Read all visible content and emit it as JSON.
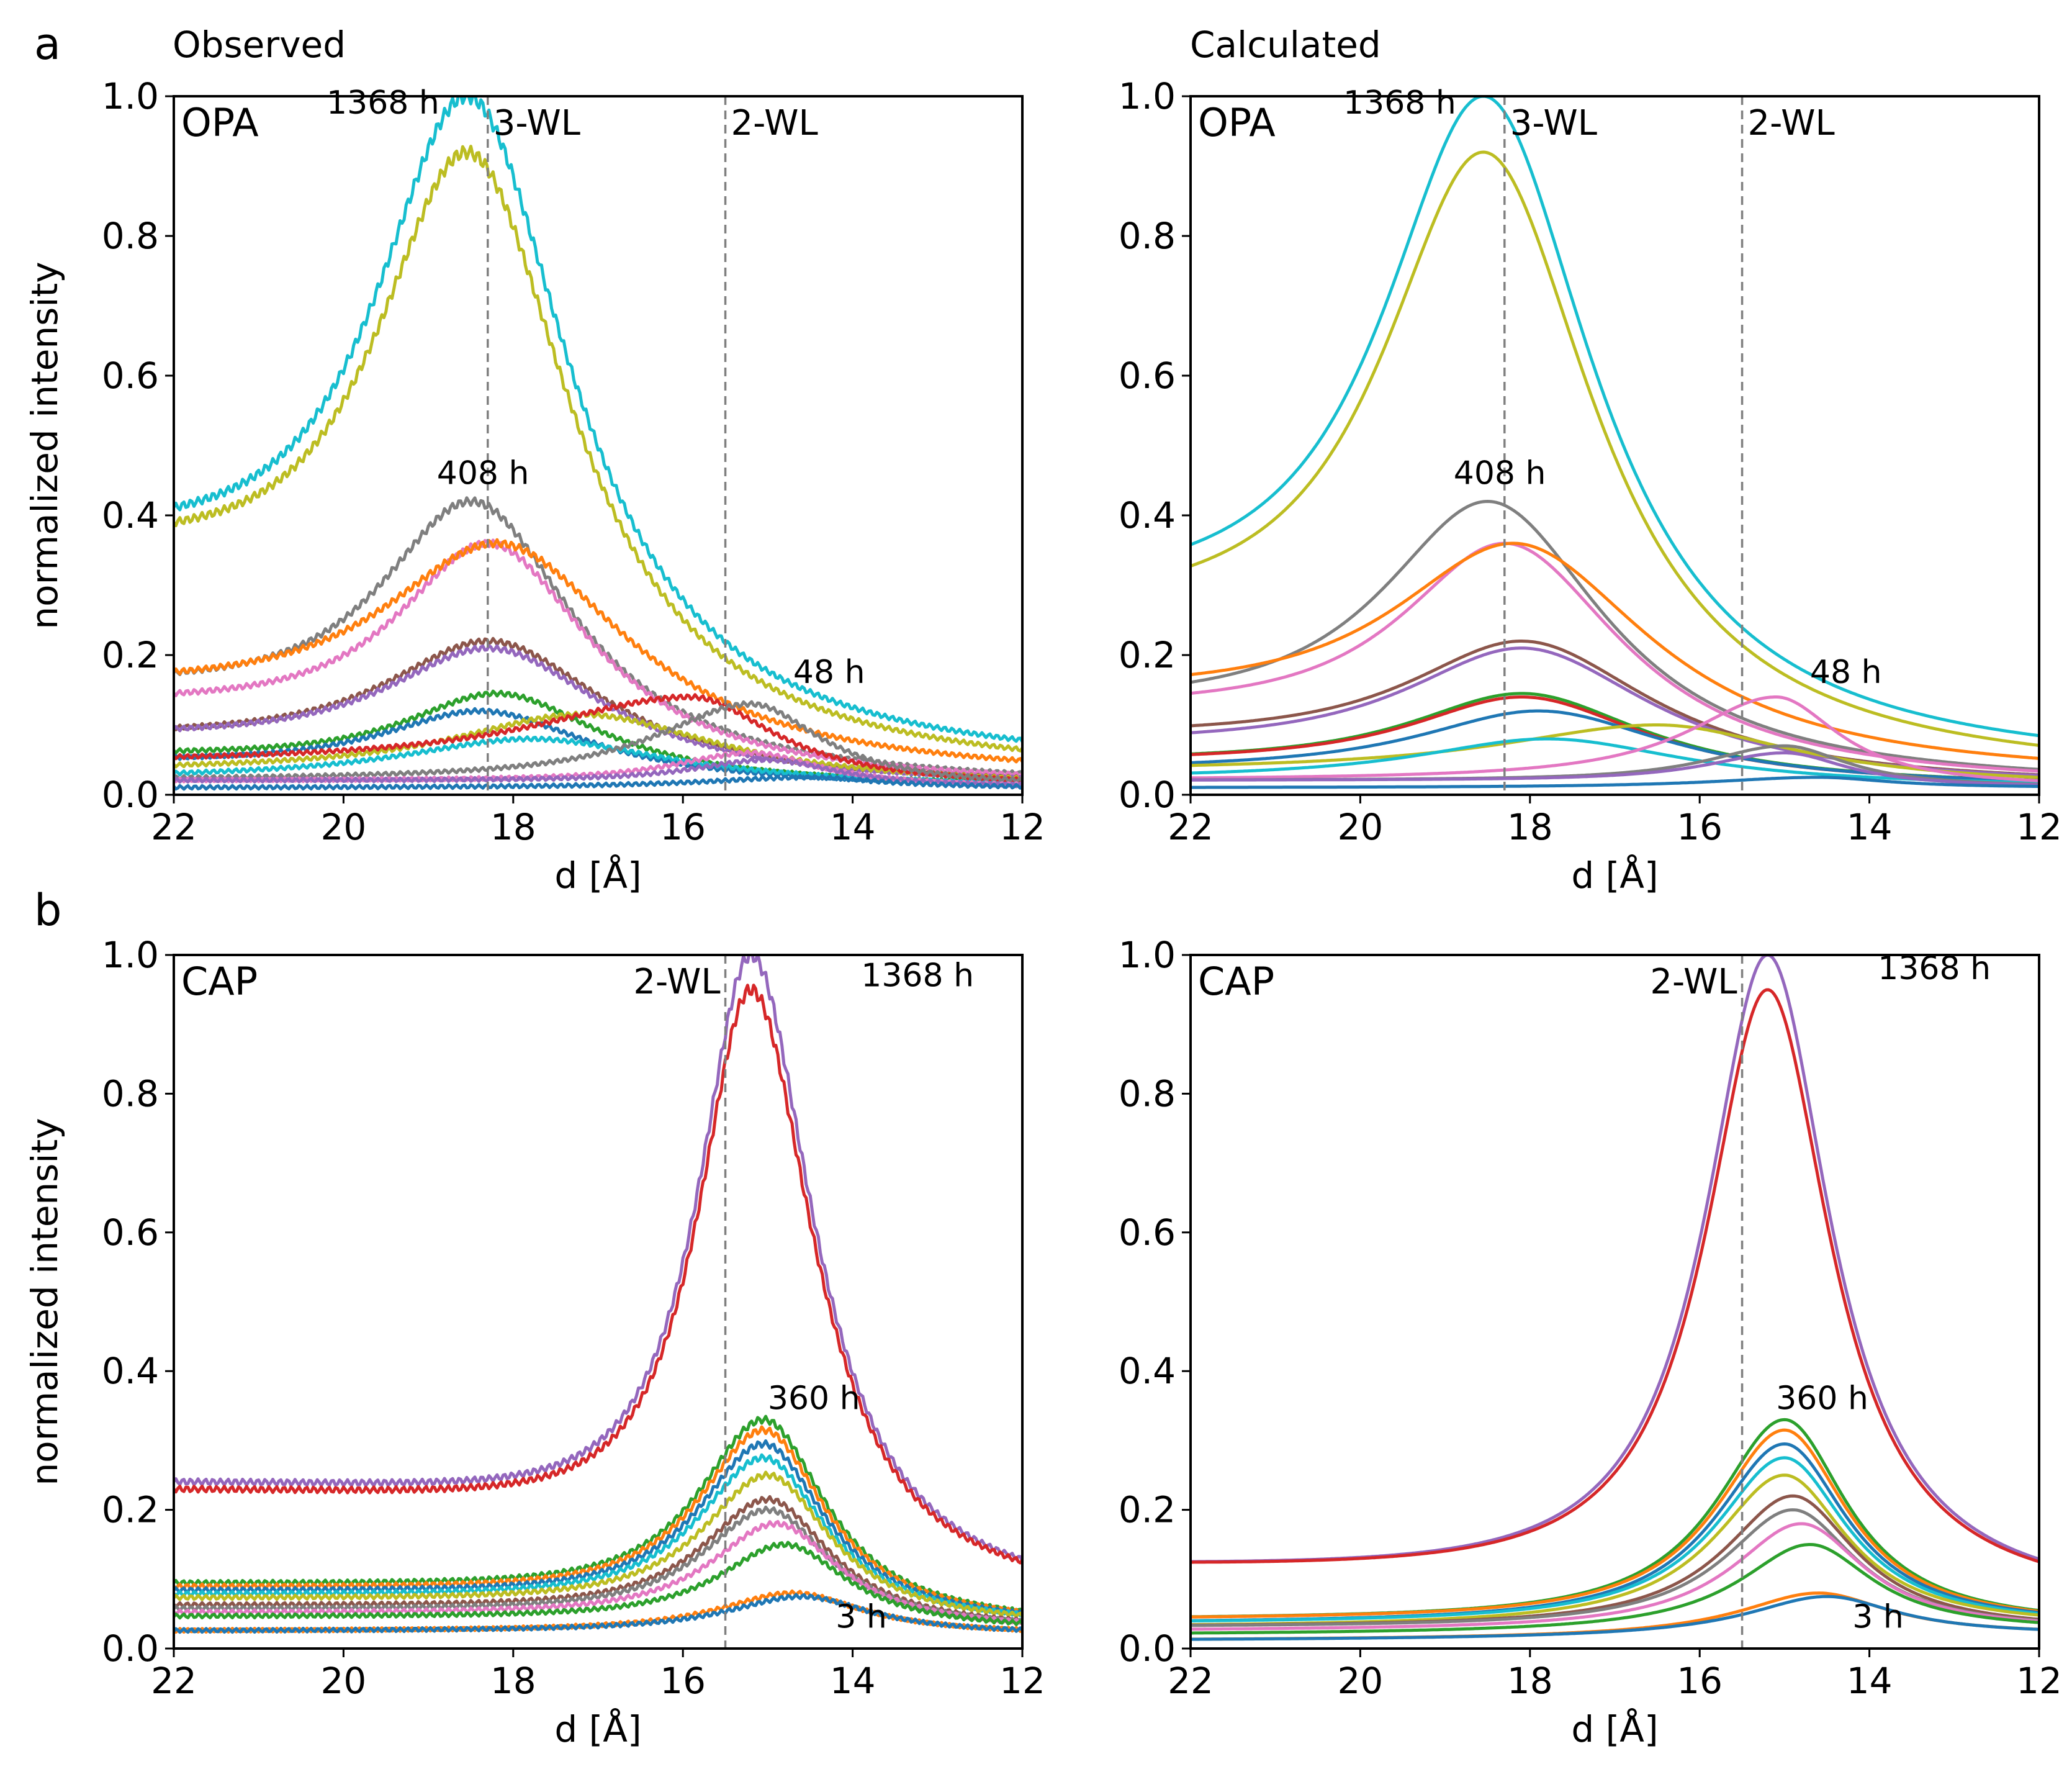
{
  "figure": {
    "panel_letters": [
      "a",
      "b"
    ],
    "column_titles": [
      "Observed",
      "Calculated"
    ]
  },
  "chart_data": [
    {
      "type": "line",
      "id": "a-observed",
      "title": "Observed",
      "panel_label": "OPA",
      "xlabel": "d [Å]",
      "ylabel": "normalized intensity",
      "xlim": [
        22,
        12
      ],
      "ylim": [
        0,
        1.0
      ],
      "xticks": [
        "22",
        "20",
        "18",
        "16",
        "14",
        "12"
      ],
      "yticks": [
        "0.0",
        "0.2",
        "0.4",
        "0.6",
        "0.8",
        "1.0"
      ],
      "vlines": [
        {
          "x": 18.3,
          "label": "3-WL"
        },
        {
          "x": 15.5,
          "label": "2-WL"
        }
      ],
      "annotations": [
        {
          "text": "1368 h",
          "x": 20.2,
          "y": 0.975
        },
        {
          "text": "408 h",
          "x": 18.9,
          "y": 0.445
        },
        {
          "text": "48 h",
          "x": 14.7,
          "y": 0.16
        }
      ],
      "series": [
        {
          "name": "1368 h",
          "color": "#17becf",
          "peak": 18.55,
          "amp": 1.0,
          "wl": 1.5,
          "wr": 1.5,
          "base": 0.3,
          "ts": 2.3,
          "end": 0.03
        },
        {
          "color": "#bcbd22",
          "peak": 18.55,
          "amp": 0.92,
          "wl": 1.5,
          "wr": 1.5,
          "base": 0.29,
          "ts": 2.3,
          "end": 0.02
        },
        {
          "name": "408 h",
          "color": "#7f7f7f",
          "peak": 18.5,
          "amp": 0.42,
          "wl": 1.5,
          "wr": 1.5,
          "base": 0.13,
          "ts": 2.3,
          "end": 0.01
        },
        {
          "color": "#e377c2",
          "peak": 18.3,
          "amp": 0.36,
          "wl": 1.5,
          "wr": 1.5,
          "base": 0.11,
          "ts": 2.3,
          "end": 0.01
        },
        {
          "color": "#ff7f0e",
          "peak": 18.2,
          "amp": 0.36,
          "wl": 1.9,
          "wr": 1.9,
          "base": 0.13,
          "ts": 2.3,
          "end": 0.02
        },
        {
          "color": "#8c564b",
          "peak": 18.3,
          "amp": 0.22,
          "wl": 1.7,
          "wr": 1.7,
          "base": 0.07,
          "ts": 2.3,
          "end": 0.01
        },
        {
          "color": "#9467bd",
          "peak": 18.3,
          "amp": 0.21,
          "wl": 1.7,
          "wr": 1.7,
          "base": 0.07,
          "ts": 2.3,
          "end": 0.01
        },
        {
          "color": "#2ca02c",
          "peak": 18.2,
          "amp": 0.145,
          "wl": 1.5,
          "wr": 1.5,
          "base": 0.05,
          "ts": 2.3,
          "end": 0.01
        },
        {
          "color": "#1f77b4",
          "peak": 18.4,
          "amp": 0.12,
          "wl": 1.6,
          "wr": 1.6,
          "base": 0.04,
          "ts": 2.3,
          "end": 0.01
        },
        {
          "color": "#bcbd22",
          "peak": 17.2,
          "amp": 0.115,
          "wl": 2.0,
          "wr": 2.0,
          "base": 0.03,
          "ts": 2.3,
          "end": 0.01
        },
        {
          "color": "#17becf",
          "peak": 17.8,
          "amp": 0.08,
          "wl": 2.0,
          "wr": 2.0,
          "base": 0.02,
          "ts": 2.3,
          "end": 0.01
        },
        {
          "color": "#d62728",
          "peak": 15.9,
          "amp": 0.14,
          "wl": 2.5,
          "wr": 1.2,
          "base": 0.04,
          "ts": 3.5,
          "end": 0.01
        },
        {
          "name": "48 h",
          "color": "#7f7f7f",
          "peak": 15.2,
          "amp": 0.13,
          "wl": 1.4,
          "wr": 1.0,
          "base": 0.02,
          "ts": 2.0,
          "end": 0.01
        },
        {
          "color": "#e377c2",
          "peak": 15.2,
          "amp": 0.06,
          "wl": 1.2,
          "wr": 1.0,
          "base": 0.02,
          "ts": 2.0,
          "end": 0.01
        },
        {
          "color": "#9467bd",
          "peak": 15.0,
          "amp": 0.05,
          "wl": 1.2,
          "wr": 1.0,
          "base": 0.02,
          "ts": 2.0,
          "end": 0.01
        },
        {
          "color": "#1f77b4",
          "peak": 14.5,
          "amp": 0.025,
          "wl": 1.5,
          "wr": 1.0,
          "base": 0.01,
          "ts": 2.0,
          "end": 0.01
        }
      ]
    },
    {
      "type": "line",
      "id": "a-calculated",
      "title": "Calculated",
      "panel_label": "OPA",
      "xlabel": "d [Å]",
      "ylabel": "",
      "xlim": [
        22,
        12
      ],
      "ylim": [
        0,
        1.0
      ],
      "xticks": [
        "22",
        "20",
        "18",
        "16",
        "14",
        "12"
      ],
      "yticks": [
        "0.0",
        "0.2",
        "0.4",
        "0.6",
        "0.8",
        "1.0"
      ],
      "vlines": [
        {
          "x": 18.3,
          "label": "3-WL"
        },
        {
          "x": 15.5,
          "label": "2-WL"
        }
      ],
      "annotations": [
        {
          "text": "1368 h",
          "x": 20.2,
          "y": 0.975
        },
        {
          "text": "408 h",
          "x": 18.9,
          "y": 0.445
        },
        {
          "text": "48 h",
          "x": 14.7,
          "y": 0.16
        }
      ],
      "series": [
        {
          "name": "1368 h",
          "color": "#17becf",
          "peak": 18.55,
          "amp": 1.0,
          "wl": 1.6,
          "wr": 1.6,
          "base": 0.22,
          "ts": 2.3,
          "end": 0.03
        },
        {
          "color": "#bcbd22",
          "peak": 18.55,
          "amp": 0.92,
          "wl": 1.6,
          "wr": 1.6,
          "base": 0.2,
          "ts": 2.3,
          "end": 0.02
        },
        {
          "name": "408 h",
          "color": "#7f7f7f",
          "peak": 18.5,
          "amp": 0.42,
          "wl": 1.7,
          "wr": 1.7,
          "base": 0.1,
          "ts": 2.3,
          "end": 0.01
        },
        {
          "color": "#e377c2",
          "peak": 18.3,
          "amp": 0.36,
          "wl": 1.7,
          "wr": 1.7,
          "base": 0.1,
          "ts": 2.3,
          "end": 0.01
        },
        {
          "color": "#ff7f0e",
          "peak": 18.2,
          "amp": 0.36,
          "wl": 2.0,
          "wr": 2.0,
          "base": 0.12,
          "ts": 2.3,
          "end": 0.02
        },
        {
          "color": "#8c564b",
          "peak": 18.1,
          "amp": 0.22,
          "wl": 1.9,
          "wr": 1.9,
          "base": 0.07,
          "ts": 2.3,
          "end": 0.01
        },
        {
          "color": "#9467bd",
          "peak": 18.1,
          "amp": 0.21,
          "wl": 1.9,
          "wr": 1.9,
          "base": 0.06,
          "ts": 2.3,
          "end": 0.01
        },
        {
          "color": "#2ca02c",
          "peak": 18.1,
          "amp": 0.145,
          "wl": 1.8,
          "wr": 1.8,
          "base": 0.04,
          "ts": 2.3,
          "end": 0.01
        },
        {
          "color": "#d62728",
          "peak": 18.1,
          "amp": 0.14,
          "wl": 1.8,
          "wr": 1.8,
          "base": 0.04,
          "ts": 2.3,
          "end": 0.01
        },
        {
          "color": "#1f77b4",
          "peak": 17.9,
          "amp": 0.12,
          "wl": 1.9,
          "wr": 1.9,
          "base": 0.03,
          "ts": 2.3,
          "end": 0.01
        },
        {
          "color": "#bcbd22",
          "peak": 16.5,
          "amp": 0.1,
          "wl": 2.5,
          "wr": 2.0,
          "base": 0.03,
          "ts": 2.3,
          "end": 0.01
        },
        {
          "color": "#17becf",
          "peak": 17.8,
          "amp": 0.08,
          "wl": 2.0,
          "wr": 2.0,
          "base": 0.02,
          "ts": 2.3,
          "end": 0.01
        },
        {
          "name": "48 h",
          "color": "#e377c2",
          "peak": 15.1,
          "amp": 0.14,
          "wl": 1.3,
          "wr": 0.9,
          "base": 0.02,
          "ts": 2.0,
          "end": 0.01
        },
        {
          "color": "#7f7f7f",
          "peak": 15.0,
          "amp": 0.07,
          "wl": 1.2,
          "wr": 0.9,
          "base": 0.02,
          "ts": 2.0,
          "end": 0.01
        },
        {
          "color": "#9467bd",
          "peak": 15.0,
          "amp": 0.06,
          "wl": 1.2,
          "wr": 0.9,
          "base": 0.02,
          "ts": 2.0,
          "end": 0.01
        },
        {
          "color": "#1f77b4",
          "peak": 14.6,
          "amp": 0.025,
          "wl": 1.5,
          "wr": 1.0,
          "base": 0.01,
          "ts": 2.0,
          "end": 0.01
        }
      ]
    },
    {
      "type": "line",
      "id": "b-observed",
      "title": "",
      "panel_label": "CAP",
      "xlabel": "d [Å]",
      "ylabel": "normalized intensity",
      "xlim": [
        22,
        12
      ],
      "ylim": [
        0,
        1.0
      ],
      "xticks": [
        "22",
        "20",
        "18",
        "16",
        "14",
        "12"
      ],
      "yticks": [
        "0.0",
        "0.2",
        "0.4",
        "0.6",
        "0.8",
        "1.0"
      ],
      "vlines": [
        {
          "x": 15.5,
          "label": "2-WL"
        }
      ],
      "annotations": [
        {
          "text": "1368 h",
          "x": 13.9,
          "y": 0.955
        },
        {
          "text": "360 h",
          "x": 15.0,
          "y": 0.345
        },
        {
          "text": "3 h",
          "x": 14.2,
          "y": 0.03
        }
      ],
      "series": [
        {
          "name": "1368 h",
          "color": "#9467bd",
          "peak": 15.2,
          "amp": 1.0,
          "wl": 0.8,
          "wr": 0.9,
          "base": 0.23,
          "ts": 2.2,
          "end": 0.06
        },
        {
          "color": "#d62728",
          "peak": 15.2,
          "amp": 0.95,
          "wl": 0.8,
          "wr": 0.9,
          "base": 0.22,
          "ts": 2.2,
          "end": 0.06
        },
        {
          "name": "360 h",
          "color": "#2ca02c",
          "peak": 15.05,
          "amp": 0.33,
          "wl": 1.0,
          "wr": 0.9,
          "base": 0.09,
          "ts": 2.2,
          "end": 0.03
        },
        {
          "color": "#ff7f0e",
          "peak": 15.05,
          "amp": 0.315,
          "wl": 1.0,
          "wr": 0.9,
          "base": 0.085,
          "ts": 2.2,
          "end": 0.03
        },
        {
          "color": "#1f77b4",
          "peak": 15.05,
          "amp": 0.295,
          "wl": 1.0,
          "wr": 0.9,
          "base": 0.08,
          "ts": 2.2,
          "end": 0.03
        },
        {
          "color": "#17becf",
          "peak": 15.05,
          "amp": 0.275,
          "wl": 1.0,
          "wr": 0.9,
          "base": 0.075,
          "ts": 2.2,
          "end": 0.03
        },
        {
          "color": "#bcbd22",
          "peak": 15.0,
          "amp": 0.25,
          "wl": 1.0,
          "wr": 0.9,
          "base": 0.07,
          "ts": 2.2,
          "end": 0.03
        },
        {
          "color": "#8c564b",
          "peak": 15.0,
          "amp": 0.215,
          "wl": 1.0,
          "wr": 0.9,
          "base": 0.06,
          "ts": 2.2,
          "end": 0.025
        },
        {
          "color": "#7f7f7f",
          "peak": 15.0,
          "amp": 0.2,
          "wl": 1.0,
          "wr": 0.9,
          "base": 0.055,
          "ts": 2.2,
          "end": 0.025
        },
        {
          "color": "#e377c2",
          "peak": 14.9,
          "amp": 0.18,
          "wl": 1.0,
          "wr": 0.9,
          "base": 0.05,
          "ts": 2.2,
          "end": 0.025
        },
        {
          "color": "#2ca02c",
          "peak": 14.8,
          "amp": 0.15,
          "wl": 1.0,
          "wr": 0.9,
          "base": 0.045,
          "ts": 2.2,
          "end": 0.025
        },
        {
          "color": "#ff7f0e",
          "peak": 14.7,
          "amp": 0.08,
          "wl": 1.1,
          "wr": 1.0,
          "base": 0.025,
          "ts": 2.2,
          "end": 0.02
        },
        {
          "name": "3 h",
          "color": "#1f77b4",
          "peak": 14.6,
          "amp": 0.075,
          "wl": 1.1,
          "wr": 1.0,
          "base": 0.025,
          "ts": 2.2,
          "end": 0.02
        }
      ]
    },
    {
      "type": "line",
      "id": "b-calculated",
      "title": "",
      "panel_label": "CAP",
      "xlabel": "d [Å]",
      "ylabel": "",
      "xlim": [
        22,
        12
      ],
      "ylim": [
        0,
        1.0
      ],
      "xticks": [
        "22",
        "20",
        "18",
        "16",
        "14",
        "12"
      ],
      "yticks": [
        "0.0",
        "0.2",
        "0.4",
        "0.6",
        "0.8",
        "1.0"
      ],
      "vlines": [
        {
          "x": 15.5,
          "label": "2-WL"
        }
      ],
      "annotations": [
        {
          "text": "1368 h",
          "x": 13.9,
          "y": 0.965
        },
        {
          "text": "360 h",
          "x": 15.1,
          "y": 0.345
        },
        {
          "text": "3 h",
          "x": 14.2,
          "y": 0.03
        }
      ],
      "series": [
        {
          "name": "1368 h",
          "color": "#9467bd",
          "peak": 15.2,
          "amp": 1.0,
          "wl": 0.9,
          "wr": 0.9,
          "base": 0.11,
          "ts": 5.5,
          "end": 0.06
        },
        {
          "color": "#d62728",
          "peak": 15.2,
          "amp": 0.95,
          "wl": 0.9,
          "wr": 0.9,
          "base": 0.11,
          "ts": 5.5,
          "end": 0.06
        },
        {
          "name": "360 h",
          "color": "#2ca02c",
          "peak": 15.0,
          "amp": 0.33,
          "wl": 1.0,
          "wr": 0.9,
          "base": 0.04,
          "ts": 3.0,
          "end": 0.03
        },
        {
          "color": "#ff7f0e",
          "peak": 15.0,
          "amp": 0.315,
          "wl": 1.0,
          "wr": 0.9,
          "base": 0.04,
          "ts": 3.0,
          "end": 0.03
        },
        {
          "color": "#1f77b4",
          "peak": 15.0,
          "amp": 0.295,
          "wl": 1.0,
          "wr": 0.9,
          "base": 0.035,
          "ts": 3.0,
          "end": 0.03
        },
        {
          "color": "#17becf",
          "peak": 15.0,
          "amp": 0.275,
          "wl": 1.0,
          "wr": 0.9,
          "base": 0.035,
          "ts": 3.0,
          "end": 0.03
        },
        {
          "color": "#bcbd22",
          "peak": 15.0,
          "amp": 0.25,
          "wl": 1.0,
          "wr": 0.9,
          "base": 0.03,
          "ts": 3.0,
          "end": 0.03
        },
        {
          "color": "#8c564b",
          "peak": 14.9,
          "amp": 0.22,
          "wl": 1.0,
          "wr": 0.9,
          "base": 0.03,
          "ts": 3.0,
          "end": 0.025
        },
        {
          "color": "#7f7f7f",
          "peak": 14.9,
          "amp": 0.2,
          "wl": 1.0,
          "wr": 0.9,
          "base": 0.03,
          "ts": 3.0,
          "end": 0.025
        },
        {
          "color": "#e377c2",
          "peak": 14.8,
          "amp": 0.18,
          "wl": 1.0,
          "wr": 0.9,
          "base": 0.025,
          "ts": 3.0,
          "end": 0.025
        },
        {
          "color": "#2ca02c",
          "peak": 14.7,
          "amp": 0.15,
          "wl": 1.0,
          "wr": 0.9,
          "base": 0.02,
          "ts": 3.0,
          "end": 0.025
        },
        {
          "color": "#ff7f0e",
          "peak": 14.6,
          "amp": 0.08,
          "wl": 1.1,
          "wr": 1.0,
          "base": 0.012,
          "ts": 3.0,
          "end": 0.02
        },
        {
          "name": "3 h",
          "color": "#1f77b4",
          "peak": 14.5,
          "amp": 0.075,
          "wl": 1.1,
          "wr": 1.0,
          "base": 0.012,
          "ts": 3.0,
          "end": 0.02
        }
      ]
    }
  ]
}
